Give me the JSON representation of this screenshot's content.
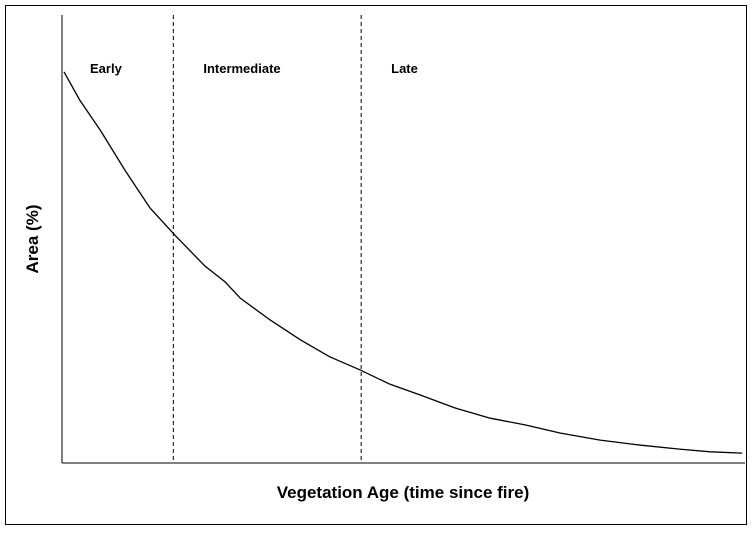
{
  "chart_data": {
    "type": "line",
    "x_label": "Vegetation Age (time since fire)",
    "y_label": "Area (%)",
    "xlim": [
      0,
      100
    ],
    "ylim": [
      0,
      100
    ],
    "color": "#000000",
    "stages": [
      {
        "label": "Early",
        "end": 16.3
      },
      {
        "label": "Intermediate",
        "end": 43.8
      },
      {
        "label": "Late"
      }
    ],
    "x": [
      0.3,
      2.6,
      5.6,
      9.2,
      12.9,
      16.5,
      20.9,
      23.9,
      26.1,
      30.5,
      34.9,
      39.2,
      43.6,
      48.0,
      52.4,
      57.5,
      62.7,
      67.8,
      72.9,
      78.8,
      84.6,
      90.4,
      94.9,
      99.6
    ],
    "values": [
      87.3,
      81.0,
      74.3,
      65.4,
      56.9,
      50.9,
      44.0,
      40.4,
      36.8,
      31.9,
      27.5,
      23.7,
      20.8,
      17.6,
      15.2,
      12.3,
      10.0,
      8.5,
      6.7,
      5.1,
      4.0,
      3.1,
      2.5,
      2.2
    ]
  }
}
